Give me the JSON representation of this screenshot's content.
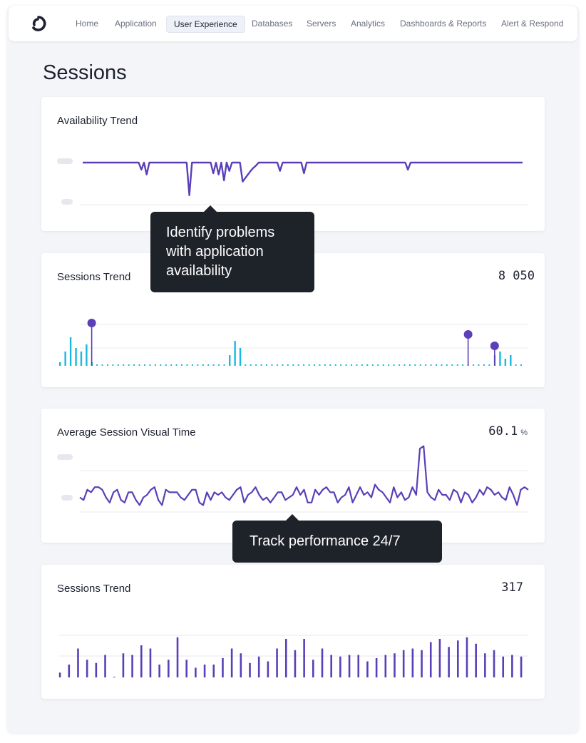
{
  "nav": {
    "items": [
      {
        "label": "Home",
        "active": false
      },
      {
        "label": "Application",
        "active": false
      },
      {
        "label": "User Experience",
        "active": true
      },
      {
        "label": "Databases",
        "active": false
      },
      {
        "label": "Servers",
        "active": false
      },
      {
        "label": "Analytics",
        "active": false
      },
      {
        "label": "Dashboards & Reports",
        "active": false
      },
      {
        "label": "Alert & Respond",
        "active": false
      }
    ]
  },
  "page": {
    "title": "Sessions"
  },
  "cards": [
    {
      "title": "Availability Trend"
    },
    {
      "title": "Sessions Trend",
      "value": "8 050"
    },
    {
      "title": "Average Session Visual Time",
      "value": "60.1",
      "unit": "%"
    },
    {
      "title": "Sessions Trend",
      "value": "317"
    }
  ],
  "tooltips": [
    {
      "text": "Identify problems with application availability"
    },
    {
      "text": "Track performance 24/7"
    }
  ],
  "colors": {
    "purple": "#5a3fb8",
    "cyan": "#19b8e0",
    "tooltip_bg": "#1e2229"
  },
  "chart_data": [
    {
      "type": "line",
      "title": "Availability Trend",
      "values": [
        100,
        100,
        100,
        100,
        100,
        100,
        100,
        100,
        100,
        100,
        100,
        100,
        100,
        100,
        100,
        100,
        100,
        100,
        100,
        100,
        100,
        100,
        88,
        100,
        80,
        100,
        100,
        100,
        100,
        100,
        100,
        100,
        100,
        100,
        100,
        100,
        100,
        100,
        100,
        100,
        45,
        100,
        100,
        100,
        100,
        100,
        100,
        100,
        100,
        82,
        100,
        80,
        100,
        70,
        100,
        86,
        100,
        100,
        100,
        100,
        68,
        74,
        80,
        86,
        91,
        95,
        100,
        100,
        100,
        100,
        100,
        100,
        100,
        100,
        86,
        100,
        100,
        100,
        100,
        100,
        100,
        100,
        100,
        82,
        100,
        100,
        100,
        100,
        100,
        100,
        100,
        100,
        100,
        100,
        100,
        100,
        100,
        100,
        100,
        100,
        100,
        100,
        100,
        100,
        100,
        100,
        100,
        100,
        100,
        100,
        100,
        100,
        100,
        100,
        100,
        100,
        100,
        100,
        100,
        100,
        100,
        100,
        88,
        100,
        100,
        100,
        100,
        100,
        100,
        100,
        100,
        100,
        100,
        100,
        100,
        100,
        100,
        100,
        100,
        100,
        100,
        100,
        100,
        100,
        100,
        100,
        100,
        100,
        100,
        100,
        100,
        100,
        100,
        100,
        100,
        100,
        100,
        100,
        100,
        100,
        100,
        100,
        100,
        100,
        100,
        100
      ]
    },
    {
      "type": "bar",
      "title": "Sessions Trend",
      "values": [
        1,
        4,
        8,
        5,
        4,
        6,
        1,
        0,
        0,
        0,
        0,
        0,
        0,
        0,
        0,
        0,
        0,
        0,
        0,
        0,
        0,
        0,
        0,
        0,
        0,
        0,
        0,
        0,
        0,
        0,
        0,
        0,
        3,
        7,
        5,
        0,
        0,
        0,
        0,
        0,
        0,
        0,
        0,
        0,
        0,
        0,
        0,
        0,
        0,
        0,
        0,
        0,
        0,
        0,
        0,
        0,
        0,
        0,
        0,
        0,
        0,
        0,
        0,
        0,
        0,
        0,
        0,
        0,
        0,
        0,
        0,
        0,
        0,
        0,
        0,
        0,
        0,
        0,
        0,
        0,
        0,
        0,
        3,
        4,
        2,
        3,
        0,
        0
      ],
      "marker_values": [
        15,
        11,
        7
      ],
      "marker_indices": [
        6,
        77,
        82
      ]
    },
    {
      "type": "line",
      "title": "Average Session Visual Time",
      "values": [
        58,
        57,
        61,
        60,
        62,
        62,
        61,
        58,
        56,
        60,
        61,
        57,
        56,
        60,
        60,
        57,
        55,
        58,
        59,
        61,
        62,
        57,
        55,
        61,
        60,
        60,
        60,
        58,
        57,
        59,
        61,
        61,
        56,
        55,
        60,
        57,
        60,
        59,
        60,
        58,
        57,
        59,
        61,
        62,
        56,
        59,
        60,
        62,
        59,
        57,
        58,
        56,
        58,
        60,
        60,
        57,
        58,
        59,
        62,
        59,
        61,
        56,
        56,
        61,
        59,
        61,
        62,
        60,
        60,
        56,
        58,
        59,
        62,
        56,
        59,
        62,
        59,
        60,
        58,
        63,
        61,
        60,
        58,
        56,
        62,
        58,
        60,
        57,
        58,
        62,
        59,
        77,
        78,
        60,
        58,
        57,
        61,
        59,
        59,
        57,
        61,
        60,
        56,
        60,
        59,
        56,
        58,
        61,
        59,
        62,
        61,
        59,
        60,
        58,
        57,
        62,
        59,
        55,
        61,
        62,
        61
      ],
      "ylabel": "",
      "xlabel": ""
    },
    {
      "type": "bar",
      "title": "Sessions Trend",
      "values": [
        3,
        8,
        18,
        11,
        9,
        14,
        0,
        15,
        14,
        20,
        18,
        8,
        11,
        25,
        11,
        6,
        8,
        8,
        12,
        18,
        15,
        9,
        13,
        10,
        18,
        24,
        17,
        24,
        11,
        18,
        14,
        13,
        14,
        14,
        10,
        12,
        14,
        15,
        17,
        18,
        17,
        22,
        24,
        19,
        23,
        25,
        21,
        15,
        17,
        13,
        14,
        13
      ]
    }
  ]
}
